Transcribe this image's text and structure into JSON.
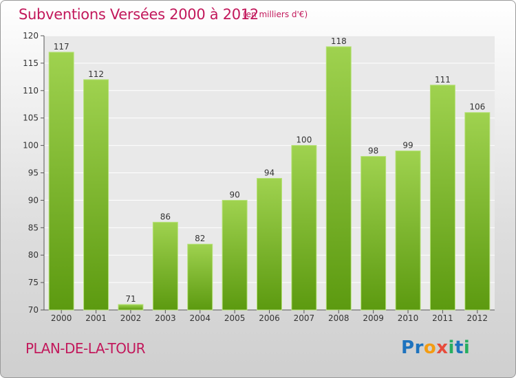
{
  "header": {
    "title": "Subventions Versées 2000 à 2012",
    "unit_note": "(en milliers d'€)"
  },
  "footer": {
    "commune": "PLAN-DE-LA-TOUR",
    "logo_letters": [
      "P",
      "r",
      "o",
      "x",
      "i",
      "t",
      "i"
    ]
  },
  "colors": {
    "accent": "#c2185b",
    "bar_light": "#9fd24f",
    "bar_dark": "#5c9a10",
    "logo": [
      "#1e73be",
      "#1e73be",
      "#f39c12",
      "#e74c3c",
      "#27ae60",
      "#1e73be",
      "#27ae60"
    ]
  },
  "chart_data": {
    "type": "bar",
    "title": "Subventions Versées 2000 à 2012",
    "categories": [
      "2000",
      "2001",
      "2002",
      "2003",
      "2004",
      "2005",
      "2006",
      "2007",
      "2008",
      "2009",
      "2010",
      "2011",
      "2012"
    ],
    "values": [
      117,
      112,
      71,
      86,
      82,
      90,
      94,
      100,
      118,
      98,
      99,
      111,
      106
    ],
    "ylim": [
      70,
      120
    ],
    "yticks": [
      70,
      75,
      80,
      85,
      90,
      95,
      100,
      105,
      110,
      115,
      120
    ],
    "xlabel": "",
    "ylabel": "",
    "grid": true,
    "data_labels": true
  }
}
